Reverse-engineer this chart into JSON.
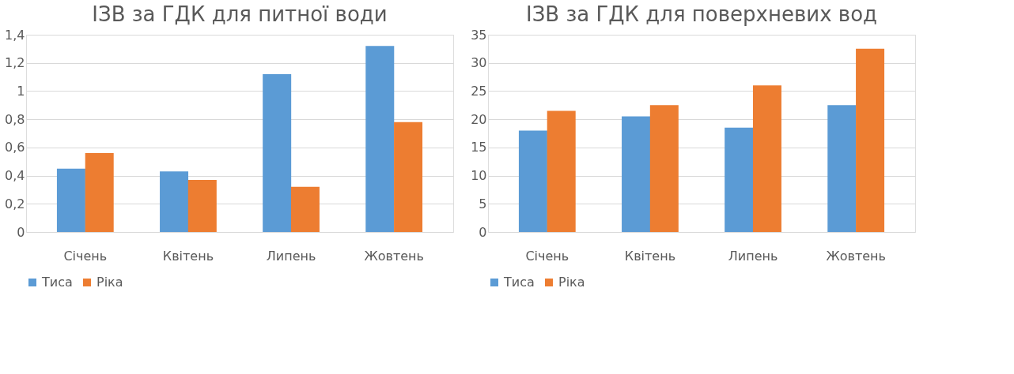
{
  "chart_data": [
    {
      "type": "bar",
      "title": "ІЗВ за ГДК для питної води",
      "categories": [
        "Січень",
        "Квітень",
        "Липень",
        "Жовтень"
      ],
      "series": [
        {
          "name": "Тиса",
          "color": "#5b9bd5",
          "values": [
            0.45,
            0.43,
            1.12,
            1.32
          ]
        },
        {
          "name": "Ріка",
          "color": "#ed7d31",
          "values": [
            0.56,
            0.37,
            0.32,
            0.78
          ]
        }
      ],
      "ylim": [
        0,
        1.4
      ],
      "yticks": [
        0,
        {
          "value": 0.2,
          "label": "0,2"
        },
        {
          "value": 0.4,
          "label": "0,4"
        },
        {
          "value": 0.6,
          "label": "0,6"
        },
        {
          "value": 0.8,
          "label": "0,8"
        },
        1,
        {
          "value": 1.2,
          "label": "1,2"
        },
        {
          "value": 1.4,
          "label": "1,4"
        }
      ],
      "grid": "y",
      "legend": "bottom"
    },
    {
      "type": "bar",
      "title": "ІЗВ за ГДК для поверхневих вод",
      "categories": [
        "Січень",
        "Квітень",
        "Липень",
        "Жовтень"
      ],
      "series": [
        {
          "name": "Тиса",
          "color": "#5b9bd5",
          "values": [
            18,
            20.5,
            18.5,
            22.5
          ]
        },
        {
          "name": "Ріка",
          "color": "#ed7d31",
          "values": [
            21.5,
            22.5,
            26,
            32.5
          ]
        }
      ],
      "ylim": [
        0,
        35
      ],
      "yticks": [
        0,
        5,
        10,
        15,
        20,
        25,
        30,
        35
      ],
      "grid": "y",
      "legend": "bottom"
    }
  ]
}
